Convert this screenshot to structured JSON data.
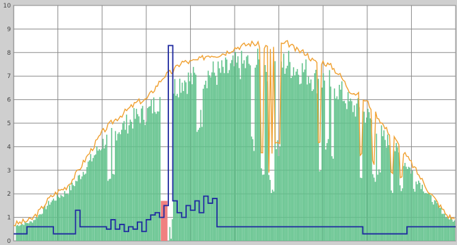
{
  "chart_data": {
    "type": "area",
    "title": "",
    "xlabel": "",
    "ylabel": "",
    "ylim": [
      0,
      10
    ],
    "yticks": [
      "0",
      "1",
      "2",
      "3",
      "4",
      "5",
      "6",
      "7",
      "8",
      "9",
      "10"
    ],
    "x_gridlines": 10,
    "grid": true,
    "legend": "none",
    "colors": {
      "area_fill": "#5fc18a",
      "area_highlight": "#f08080",
      "envelope_line": "#f0a030",
      "blue_line": "#1f2aa0",
      "plot_background": "#ffffff",
      "grid": "#8a8a8a"
    },
    "x_domain": [
      0,
      100
    ],
    "series": [
      {
        "kind": "envelope",
        "x": [
          0,
          2,
          4,
          6,
          8,
          10,
          12,
          14,
          16,
          18,
          20,
          22,
          24,
          26,
          28,
          30,
          32,
          34,
          36,
          38,
          40,
          42,
          44,
          46,
          48,
          50,
          52,
          54,
          56,
          58,
          60,
          62,
          64,
          66,
          68,
          70,
          72,
          74,
          76,
          78,
          80,
          82,
          84,
          86,
          88,
          90,
          92,
          94,
          96,
          98,
          100
        ],
        "values": [
          0.7,
          0.8,
          0.9,
          1.3,
          1.8,
          2.1,
          2.3,
          2.8,
          3.4,
          4.0,
          4.6,
          5.0,
          5.3,
          5.6,
          5.9,
          6.0,
          6.5,
          7.0,
          7.2,
          7.6,
          7.6,
          7.7,
          7.9,
          7.9,
          8.0,
          8.2,
          8.3,
          8.4,
          8.3,
          8.2,
          8.3,
          8.4,
          8.1,
          8.0,
          7.6,
          7.6,
          7.4,
          7.0,
          6.4,
          6.2,
          5.9,
          5.4,
          4.8,
          4.4,
          3.8,
          3.3,
          2.7,
          2.1,
          1.6,
          1.1,
          0.9
        ]
      },
      {
        "kind": "blue",
        "x": [
          0,
          1,
          2,
          3,
          4,
          5,
          6,
          7,
          8,
          9,
          10,
          11,
          12,
          13,
          14,
          15,
          16,
          17,
          18,
          19,
          20,
          21,
          22,
          23,
          24,
          25,
          26,
          27,
          28,
          29,
          30,
          31,
          32,
          33,
          34,
          35,
          36,
          37,
          38,
          39,
          40,
          41,
          42,
          43,
          44,
          45,
          46,
          47,
          48,
          49,
          50,
          55,
          60,
          65,
          70,
          75,
          78,
          79,
          80,
          85,
          88,
          89,
          90,
          95,
          100
        ],
        "values": [
          0.3,
          0.3,
          0.3,
          0.6,
          0.6,
          0.6,
          0.6,
          0.6,
          0.6,
          0.3,
          0.3,
          0.3,
          0.3,
          0.3,
          1.3,
          0.6,
          0.6,
          0.6,
          0.6,
          0.6,
          0.6,
          0.5,
          0.9,
          0.5,
          0.7,
          0.4,
          0.6,
          0.5,
          0.8,
          0.4,
          0.9,
          1.1,
          1.2,
          1.0,
          1.5,
          8.3,
          1.7,
          1.2,
          1.0,
          1.5,
          1.3,
          1.7,
          1.2,
          1.9,
          1.6,
          1.8,
          0.6,
          0.6,
          0.6,
          0.6,
          0.6,
          0.6,
          0.6,
          0.6,
          0.6,
          0.6,
          0.6,
          0.3,
          0.3,
          0.3,
          0.3,
          0.6,
          0.6,
          0.6,
          0.6
        ]
      },
      {
        "kind": "highlight",
        "x": [
          33.3,
          34.8
        ],
        "values": [
          1.7,
          1.7
        ]
      }
    ]
  }
}
